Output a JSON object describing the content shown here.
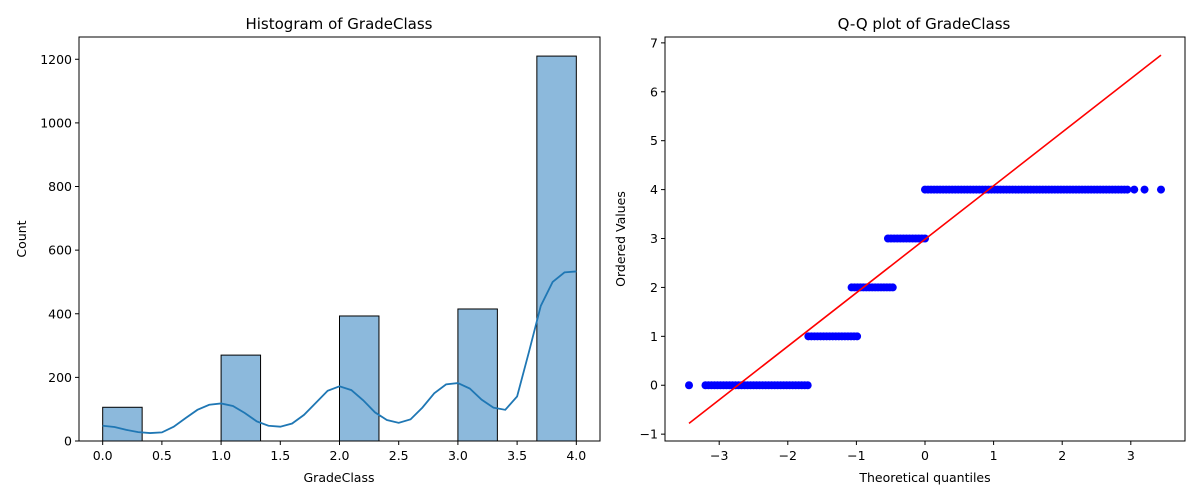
{
  "chart_data": [
    {
      "type": "bar",
      "title": "Histogram of GradeClass",
      "xlabel": "GradeClass",
      "ylabel": "Count",
      "xlim": [
        -0.2,
        4.2
      ],
      "ylim": [
        0,
        1270
      ],
      "xticks": [
        "0.0",
        "0.5",
        "1.0",
        "1.5",
        "2.0",
        "2.5",
        "3.0",
        "3.5",
        "4.0"
      ],
      "yticks": [
        "0",
        "200",
        "400",
        "600",
        "800",
        "1000",
        "1200"
      ],
      "bar_color": "#8cb9dc",
      "kde_color": "#1f77b4",
      "bins": [
        {
          "x0": 0.0,
          "x1": 0.3333,
          "count": 106
        },
        {
          "x0": 1.0,
          "x1": 1.3333,
          "count": 270
        },
        {
          "x0": 2.0,
          "x1": 2.3333,
          "count": 393
        },
        {
          "x0": 3.0,
          "x1": 3.3333,
          "count": 415
        },
        {
          "x0": 3.6667,
          "x1": 4.0,
          "count": 1210
        }
      ],
      "kde": {
        "x": [
          0.0,
          0.1,
          0.2,
          0.3,
          0.4,
          0.5,
          0.6,
          0.7,
          0.8,
          0.9,
          1.0,
          1.1,
          1.2,
          1.3,
          1.4,
          1.5,
          1.6,
          1.7,
          1.8,
          1.9,
          2.0,
          2.1,
          2.2,
          2.3,
          2.4,
          2.5,
          2.6,
          2.7,
          2.8,
          2.9,
          3.0,
          3.1,
          3.2,
          3.3,
          3.4,
          3.5,
          3.6,
          3.7,
          3.8,
          3.9,
          4.0
        ],
        "y": [
          48,
          44,
          35,
          28,
          25,
          27,
          45,
          72,
          98,
          114,
          118,
          110,
          88,
          62,
          48,
          45,
          55,
          82,
          120,
          158,
          172,
          160,
          128,
          90,
          66,
          57,
          68,
          105,
          150,
          178,
          182,
          165,
          130,
          105,
          98,
          140,
          280,
          425,
          500,
          530,
          533
        ]
      }
    },
    {
      "type": "scatter",
      "title": "Q-Q plot of GradeClass",
      "xlabel": "Theoretical quantiles",
      "ylabel": "Ordered Values",
      "xlim": [
        -3.79,
        3.79
      ],
      "ylim": [
        -1.14,
        7.12
      ],
      "xticks": [
        "−3",
        "−2",
        "−1",
        "0",
        "1",
        "2",
        "3"
      ],
      "yticks": [
        "−1",
        "0",
        "1",
        "2",
        "3",
        "4",
        "5",
        "6",
        "7"
      ],
      "point_color": "#0000ff",
      "line_color": "#ff0000",
      "fit_line": {
        "x": [
          -3.44,
          3.44
        ],
        "y": [
          -0.78,
          6.75
        ]
      },
      "groups": [
        {
          "value": 0,
          "x_from": -3.2,
          "x_to": -1.71,
          "isolated_x": [
            -3.44
          ]
        },
        {
          "value": 1,
          "x_from": -1.7,
          "x_to": -0.99,
          "isolated_x": []
        },
        {
          "value": 2,
          "x_from": -1.07,
          "x_to": -0.47,
          "isolated_x": []
        },
        {
          "value": 3,
          "x_from": -0.54,
          "x_to": 0.0,
          "isolated_x": []
        },
        {
          "value": 4,
          "x_from": 0.0,
          "x_to": 2.95,
          "isolated_x": [
            3.05,
            3.2,
            3.44
          ]
        }
      ]
    }
  ]
}
